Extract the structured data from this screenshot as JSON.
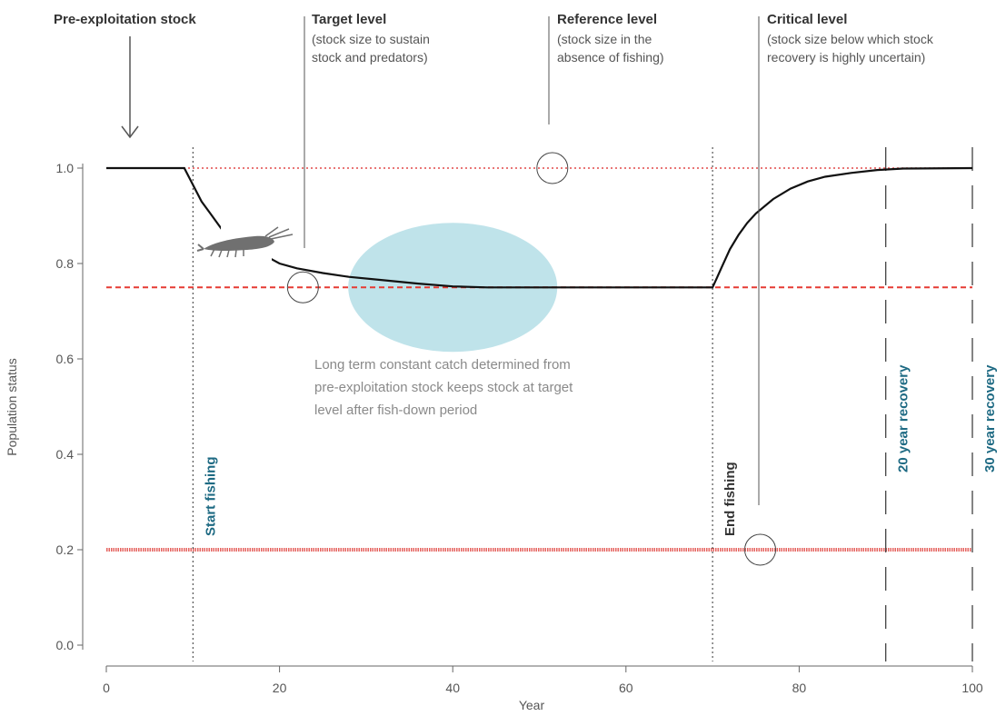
{
  "chart_data": {
    "type": "line",
    "xlabel": "Year",
    "ylabel": "Population status",
    "xlim": [
      0,
      100
    ],
    "ylim": [
      0,
      1
    ],
    "xticks": [
      "0",
      "20",
      "40",
      "60",
      "80",
      "100"
    ],
    "yticks": [
      "0.0",
      "0.2",
      "0.4",
      "0.6",
      "0.8",
      "1.0"
    ],
    "grid": false,
    "series": [
      {
        "color": "#111111",
        "points": [
          [
            0,
            1.0
          ],
          [
            9,
            1.0
          ],
          [
            10,
            0.965
          ],
          [
            11,
            0.93
          ],
          [
            12,
            0.905
          ],
          [
            13,
            0.88
          ],
          [
            14,
            0.855
          ],
          [
            19,
            0.81
          ],
          [
            20,
            0.8
          ],
          [
            22,
            0.79
          ],
          [
            25,
            0.78
          ],
          [
            28,
            0.772
          ],
          [
            32,
            0.765
          ],
          [
            36,
            0.758
          ],
          [
            40,
            0.752
          ],
          [
            44,
            0.75
          ],
          [
            70,
            0.75
          ],
          [
            70.5,
            0.77
          ],
          [
            71,
            0.79
          ],
          [
            72,
            0.83
          ],
          [
            73,
            0.86
          ],
          [
            74,
            0.885
          ],
          [
            75,
            0.905
          ],
          [
            77,
            0.935
          ],
          [
            79,
            0.957
          ],
          [
            81,
            0.972
          ],
          [
            83,
            0.982
          ],
          [
            86,
            0.99
          ],
          [
            89,
            0.996
          ],
          [
            92,
            0.999
          ],
          [
            100,
            1.0
          ]
        ]
      }
    ],
    "reference_lines": [
      {
        "y": 1.0,
        "color": "#e24a4a",
        "style": "dotted"
      },
      {
        "y": 0.75,
        "color": "#e63b33",
        "style": "dashed"
      },
      {
        "y": 0.2,
        "color": "#e5635f",
        "style": "thick"
      }
    ],
    "vertical_lines": [
      {
        "x": 10,
        "style": "dotted",
        "label": "Start fishing",
        "color": "#1e6a83"
      },
      {
        "x": 70,
        "style": "dotted",
        "label": "End fishing",
        "color": "#333333"
      },
      {
        "x": 90,
        "style": "longdash",
        "label": "20 year recovery",
        "color": "#1e6a83"
      },
      {
        "x": 100,
        "style": "longdash",
        "label": "30 year recovery",
        "color": "#1e6a83"
      }
    ],
    "annotations": [
      {
        "title": "Pre-exploitation stock",
        "body": []
      },
      {
        "title": "Target level",
        "body": [
          "(stock size to sustain",
          "stock and predators)"
        ]
      },
      {
        "title": "Reference level",
        "body": [
          "(stock size in the",
          "absence of fishing)"
        ]
      },
      {
        "title": "Critical level",
        "body": [
          "(stock size below which stock",
          "recovery is highly uncertain)"
        ]
      }
    ],
    "markers": [
      {
        "name": "target-level-marker",
        "x": 22.7,
        "y": 0.75
      },
      {
        "name": "reference-level-marker",
        "x": 51.5,
        "y": 1.0
      },
      {
        "name": "critical-level-marker",
        "x": 75.5,
        "y": 0.2
      }
    ],
    "highlight": {
      "x": 40,
      "y": 0.75,
      "color": "#bfe3ea"
    },
    "note": [
      "Long term constant catch determined from",
      "pre-exploitation stock keeps stock at target",
      "level after fish-down period"
    ]
  }
}
